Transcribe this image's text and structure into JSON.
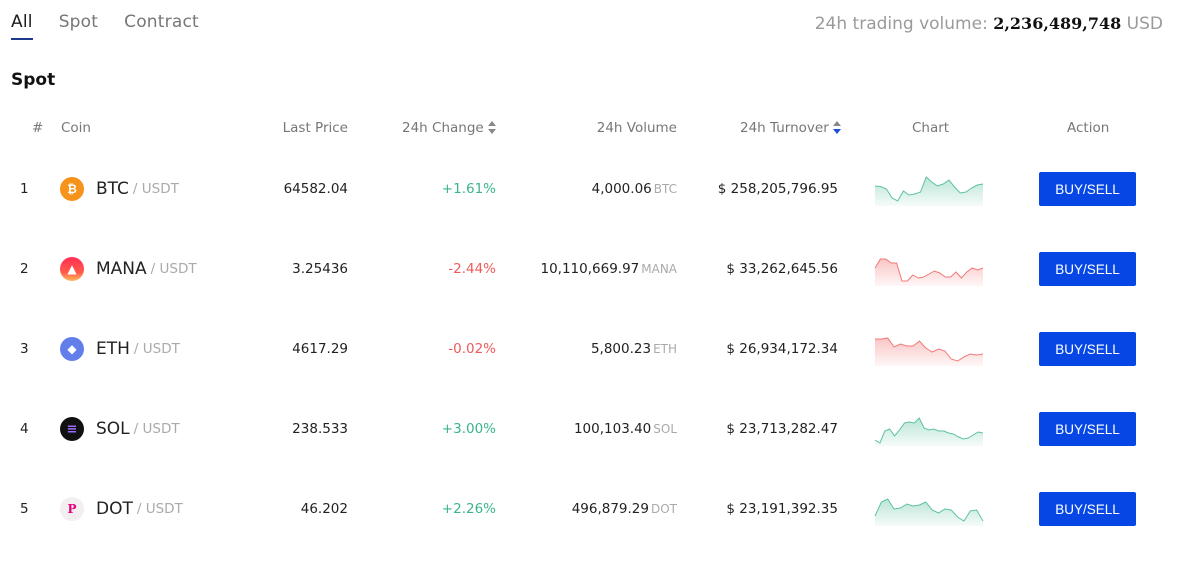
{
  "tabs": [
    {
      "label": "All",
      "active": true
    },
    {
      "label": "Spot",
      "active": false
    },
    {
      "label": "Contract",
      "active": false
    }
  ],
  "volume": {
    "label": "24h trading volume:",
    "value": "2,236,489,748",
    "unit": "USD"
  },
  "section_title": "Spot",
  "columns": {
    "index": "#",
    "coin": "Coin",
    "last_price": "Last Price",
    "change": "24h Change",
    "volume": "24h Volume",
    "turnover": "24h Turnover",
    "chart": "Chart",
    "action": "Action"
  },
  "colors": {
    "up": "#3bb58a",
    "down": "#ef5b5b",
    "accent": "#0546e5"
  },
  "rows": [
    {
      "index": "1",
      "symbol": "BTC",
      "quote": "/ USDT",
      "icon": "bitcoin-icon",
      "price": "64582.04",
      "change": "+1.61%",
      "direction": "up",
      "volume": "4,000.06",
      "volume_unit": "BTC",
      "turnover": "$ 258,205,796.95",
      "action": "BUY/SELL",
      "spark": [
        12,
        12.5,
        15,
        24,
        27,
        17,
        21,
        20,
        18,
        3,
        8,
        12,
        10,
        6,
        13,
        19,
        18,
        14,
        11,
        10
      ]
    },
    {
      "index": "2",
      "symbol": "MANA",
      "quote": "/ USDT",
      "icon": "decentraland-icon",
      "price": "3.25436",
      "change": "-2.44%",
      "direction": "down",
      "volume": "10,110,669.97",
      "volume_unit": "MANA",
      "turnover": "$ 33,262,645.56",
      "action": "BUY/SELL",
      "spark": [
        14,
        5,
        5,
        9,
        9,
        27,
        27,
        21,
        24,
        23,
        20,
        17,
        19,
        23,
        23,
        18,
        24,
        18,
        14,
        16,
        14
      ]
    },
    {
      "index": "3",
      "symbol": "ETH",
      "quote": "/ USDT",
      "icon": "ethereum-icon",
      "price": "4617.29",
      "change": "-0.02%",
      "direction": "down",
      "volume": "5,800.23",
      "volume_unit": "ETH",
      "turnover": "$ 26,934,172.34",
      "action": "BUY/SELL",
      "spark": [
        5,
        5,
        4,
        13,
        10,
        12,
        12,
        7,
        14,
        18,
        15,
        17,
        25,
        27,
        23,
        20,
        21,
        20
      ]
    },
    {
      "index": "4",
      "symbol": "SOL",
      "quote": "/ USDT",
      "icon": "solana-icon",
      "price": "238.533",
      "change": "+3.00%",
      "direction": "up",
      "volume": "100,103.40",
      "volume_unit": "SOL",
      "turnover": "$ 23,713,282.47",
      "action": "BUY/SELL",
      "spark": [
        26,
        29,
        17,
        15,
        22,
        16,
        9,
        8,
        9,
        4,
        14,
        16,
        15,
        17,
        17,
        19,
        20,
        23,
        25,
        24,
        21,
        18,
        19
      ]
    },
    {
      "index": "5",
      "symbol": "DOT",
      "quote": "/ USDT",
      "icon": "polkadot-icon",
      "price": "46.202",
      "change": "+2.26%",
      "direction": "up",
      "volume": "496,879.29",
      "volume_unit": "DOT",
      "turnover": "$ 23,191,392.35",
      "action": "BUY/SELL",
      "spark": [
        22,
        8,
        5,
        15,
        14,
        10,
        12,
        11,
        8,
        16,
        19,
        15,
        16,
        23,
        27,
        17,
        16,
        27
      ]
    }
  ]
}
